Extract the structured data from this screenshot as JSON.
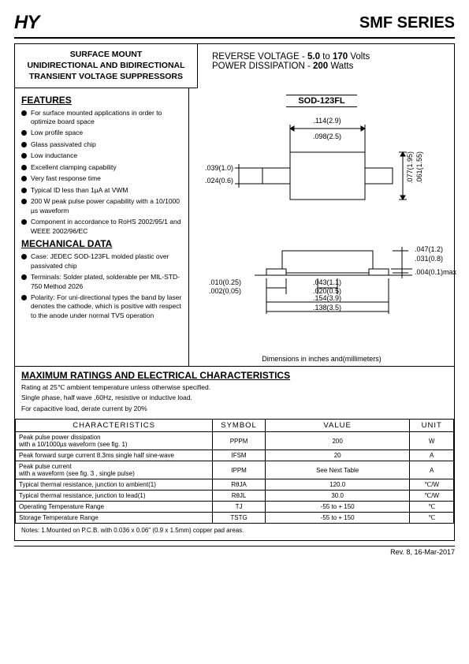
{
  "header": {
    "logo": "HY",
    "series": "SMF SERIES"
  },
  "title_box": "SURFACE MOUNT\nUNIDIRECTIONAL AND BIDIRECTIONAL\nTRANSIENT VOLTAGE  SUPPRESSORS",
  "spec": {
    "l1a": "REVERSE VOLTAGE   - ",
    "l1b": "5.0",
    "l1c": " to ",
    "l1d": "170",
    "l1e": " Volts",
    "l2a": "POWER DISSIPATION  - ",
    "l2b": "200",
    "l2c": " Watts"
  },
  "features_title": "FEATURES",
  "features": [
    "For surface mounted applications in order to optimize board space",
    "Low profile space",
    "Glass passivated chip",
    "Low inductance",
    "Excellent clamping capability",
    "Very fast response time",
    "Typical ID less than 1µA at VWM",
    "200 W peak pulse power capability with a 10/1000 µs waveform",
    "Component in accordance to RoHS 2002/95/1 and WEEE 2002/96/EC"
  ],
  "mech_title": "MECHANICAL  DATA",
  "mech": [
    "Case: JEDEC SOD-123FL molded plastic over passivated chip",
    "Terminals: Solder plated, solderable per MIL-STD-750 Method 2026",
    "Polarity: For uni-directional types the band by laser denotes the cathode, which is positive with respect to the anode under normal TVS operation"
  ],
  "package_label": "SOD-123FL",
  "dims": {
    "top": {
      "a": ".114(2.9)",
      "b": ".098(2.5)"
    },
    "left": {
      "a": ".039(1.0)",
      "b": ".024(0.6)"
    },
    "right": {
      "a": ".077(1.95)",
      "b": ".061(1.55)"
    },
    "bot_top": {
      "a": ".047(1.2)",
      "b": ".031(0.8)"
    },
    "bot_left": {
      "a": ".010(0.25)",
      "b": ".002(0.05)"
    },
    "bot_mid": {
      "a": ".043(1.1)",
      "b": ".020(0.5)"
    },
    "bot_right": ".004(0.1)max",
    "bot_wide": {
      "a": ".154(3.9)",
      "b": ".138(3.5)"
    }
  },
  "dim_caption": "Dimensions in inches and(millimeters)",
  "max_title": "MAXIMUM RATINGS AND ELECTRICAL CHARACTERISTICS",
  "max_notes": [
    "Rating at 25℃ ambient temperature unless otherwise specified.",
    "Single phase, half wave ,60Hz, resistive or inductive load.",
    "For capacitive load, derate current by 20%"
  ],
  "table": {
    "headers": [
      "CHARACTERISTICS",
      "SYMBOL",
      "VALUE",
      "UNIT"
    ],
    "rows": [
      [
        "Peak pulse power dissipation\nwith a 10/1000µs waveform (see fig. 1)",
        "PPPM",
        "200",
        "W"
      ],
      [
        "Peak forward surge current 8.3ms single half sine-wave",
        "IFSM",
        "20",
        "A"
      ],
      [
        "Peak pulse current\nwith a waveform (see fig. 3 , single pulse)",
        "IPPM",
        "See Next Table",
        "A"
      ],
      [
        "Typical thermal resistance, junction to ambient(1)",
        "RθJA",
        "120.0",
        "℃/W"
      ],
      [
        "Typical thermal resistance, junction to lead(1)",
        "RθJL",
        "30.0",
        "℃/W"
      ],
      [
        "Operating Temperature Range",
        "TJ",
        "-55 to + 150",
        "℃"
      ],
      [
        "Storage Temperature Range",
        "TSTG",
        "-55 to + 150",
        "℃"
      ]
    ]
  },
  "footnote": "Notes: 1.Mounted on P.C.B. with 0.036 x 0.06\" (0.9 x 1.5mm) copper pad areas.",
  "rev": "Rev. 8, 16-Mar-2017",
  "colors": {
    "border": "#000000",
    "bg": "#ffffff",
    "text": "#000000",
    "diagram_fill": "#ffffff"
  }
}
